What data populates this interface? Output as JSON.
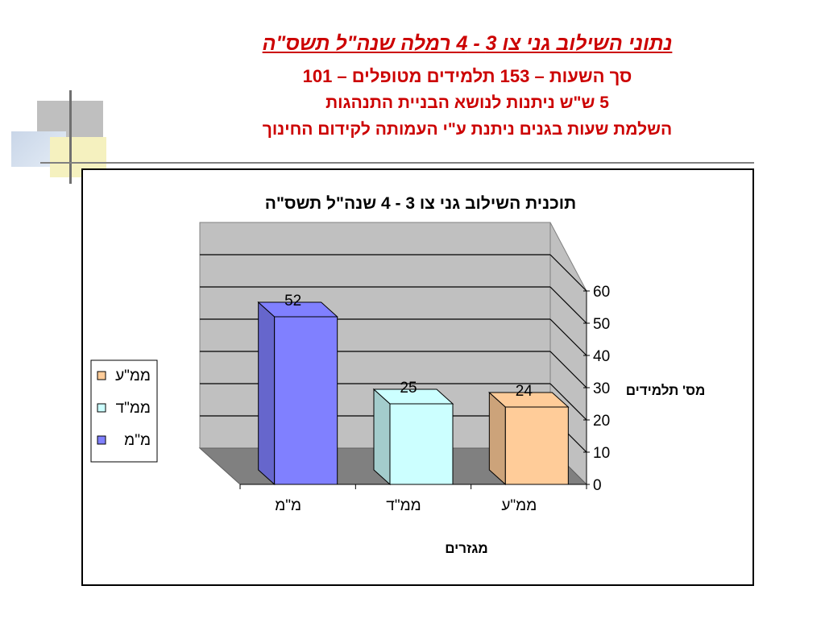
{
  "slide": {
    "title": "נתוני השילוב גני צו 3 - 4 רמלה שנה\"ל תשס\"ה",
    "line2": "סך השעות – 153 תלמידים מטופלים – 101",
    "line3": "5 ש\"ש ניתנות לנושא הבניית התנהגות",
    "line4": "השלמת שעות בגנים ניתנת ע\"י העמותה לקידום החינוך"
  },
  "colors": {
    "header_text": "#cc0000",
    "wall": "#c0c0c0",
    "floor": "#808080"
  },
  "chart_data": {
    "type": "bar",
    "title": "תוכנית השילוב גני צו 3 - 4  שנה\"ל תשס\"ה",
    "xlabel": "מגזרים",
    "ylabel": "מס' תלמידים",
    "categories": [
      "מ\"מ",
      "ממ\"ד",
      "ממ\"ע"
    ],
    "values": [
      52,
      25,
      24
    ],
    "bar_colors": [
      "#8080ff",
      "#ccffff",
      "#ffcc99"
    ],
    "ylim": [
      0,
      60
    ],
    "yticks": [
      0,
      10,
      20,
      30,
      40,
      50,
      60
    ],
    "legend": {
      "position": "left",
      "entries": [
        {
          "label": "ממ\"ע",
          "color": "#ffcc99"
        },
        {
          "label": "ממ\"ד",
          "color": "#ccffff"
        },
        {
          "label": "מ\"מ",
          "color": "#8080ff"
        }
      ]
    },
    "grid": true
  }
}
